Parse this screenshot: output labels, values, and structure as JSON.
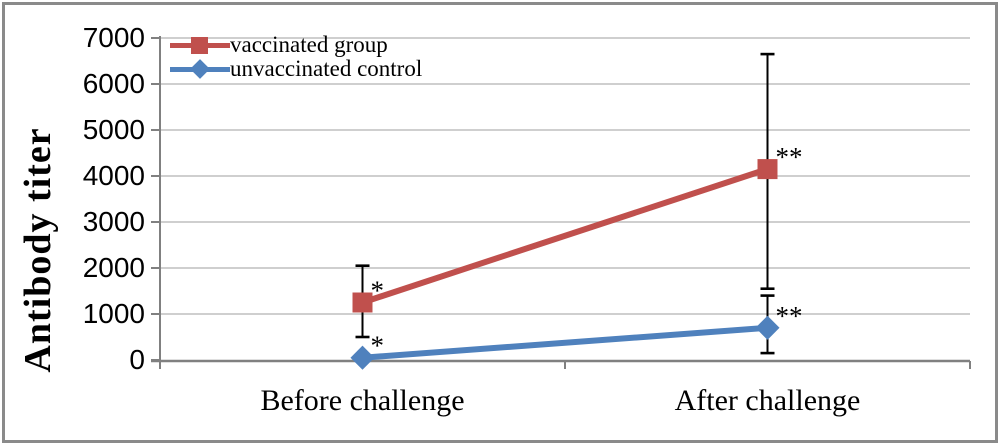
{
  "figure": {
    "background": "#ffffff",
    "frame_color": "#8a8a8a",
    "axis_color": "#808080",
    "grid_color": "#bfbfbf",
    "error_bar_color": "#000000"
  },
  "chart_data": {
    "type": "line",
    "title": "",
    "ylabel": "Antibody titer",
    "xlabel": "",
    "categories": [
      "Before challenge",
      "After challenge"
    ],
    "ylim": [
      0,
      7000
    ],
    "yticks": [
      0,
      1000,
      2000,
      3000,
      4000,
      5000,
      6000,
      7000
    ],
    "grid": "horizontal-only",
    "legend_position": "top-left-inside",
    "series": [
      {
        "name": "vaccinated group",
        "color": "#c0504d",
        "marker": "square",
        "values": [
          1250,
          4150
        ],
        "error_low": [
          500,
          1550
        ],
        "error_high": [
          2050,
          6650
        ],
        "significance": [
          "*",
          "**"
        ]
      },
      {
        "name": "unvaccinated control",
        "color": "#4f81bd",
        "marker": "diamond",
        "values": [
          50,
          700
        ],
        "error_low": [
          null,
          150
        ],
        "error_high": [
          null,
          1400
        ],
        "significance": [
          "*",
          "**"
        ]
      }
    ]
  }
}
